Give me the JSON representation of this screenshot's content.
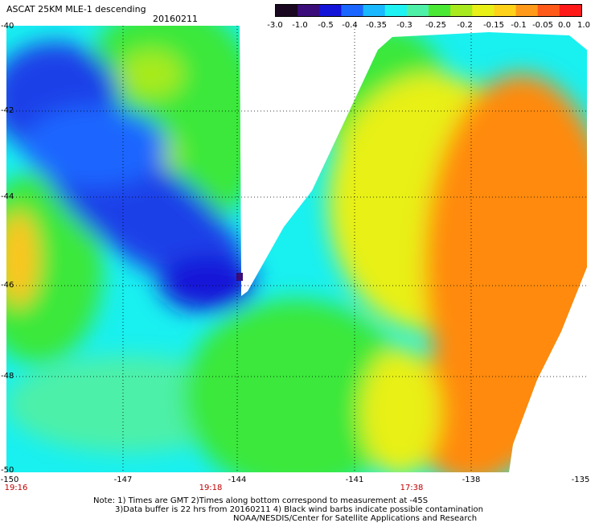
{
  "header": {
    "title": "ASCAT 25KM MLE-1 descending",
    "date": "20160211"
  },
  "colorbar": {
    "ticks": [
      "-3.0",
      "-1.0",
      "-0.5",
      "-0.4",
      "-0.35",
      "-0.3",
      "-0.25",
      "-0.2",
      "-0.15",
      "-0.1",
      "-0.05",
      "0.0",
      "1.0"
    ],
    "colors": [
      "#1a0820",
      "#3a0d7a",
      "#1414d8",
      "#1a66ff",
      "#19b8ff",
      "#1ef2f2",
      "#4ef0a8",
      "#4be836",
      "#a8ea1e",
      "#e8f018",
      "#ffd21a",
      "#ff9a1a",
      "#ff5a1a",
      "#ff1a1a"
    ]
  },
  "axes": {
    "lat_labels": [
      "-40",
      "-42",
      "-44",
      "-46",
      "-48",
      "-50"
    ],
    "lon_labels": [
      "-150",
      "-147",
      "-144",
      "-141",
      "-138",
      "-135"
    ],
    "time_labels": [
      "19:16",
      "19:18",
      "17:38"
    ]
  },
  "map_data": {
    "lat_range": [
      -50,
      -40
    ],
    "lon_range": [
      -150,
      -135
    ],
    "colors": {
      "blue": "#1f40e8",
      "cyan": "#19f0f0",
      "green": "#3be83a",
      "yellow": "#f0e81e",
      "orange": "#ff8a10",
      "gap": "#ffffff"
    }
  },
  "notes": [
    "Note: 1) Times are GMT 2)Times along bottom correspond to measurement at -45S",
    "3)Data buffer is 22 hrs from 20160211 4) Black wind barbs indicate possible contamination",
    "NOAA/NESDIS/Center for Satellite Applications and Research"
  ]
}
